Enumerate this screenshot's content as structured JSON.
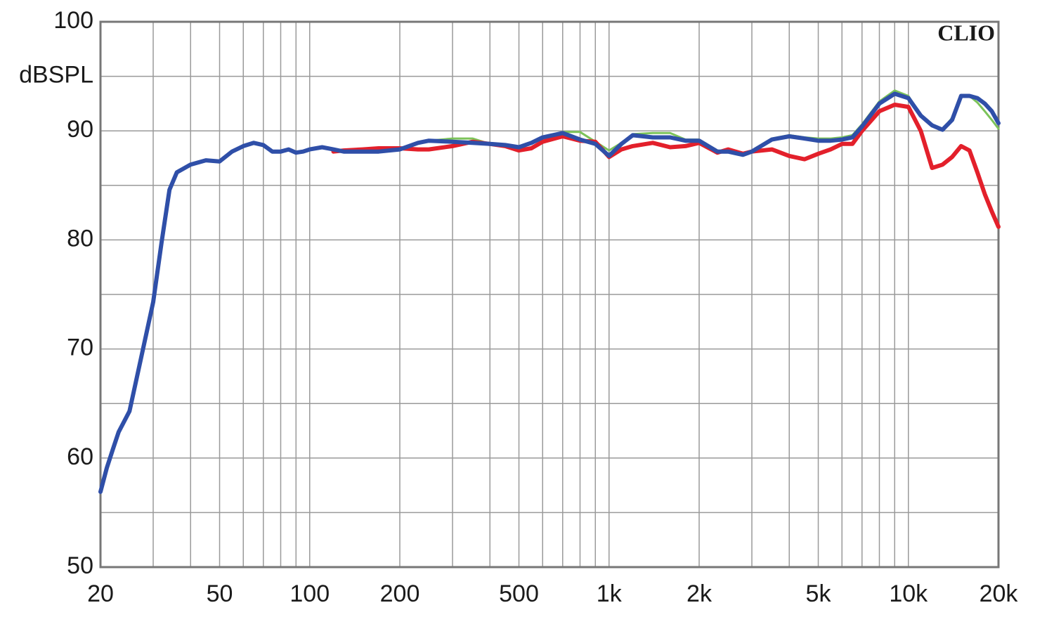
{
  "chart_data": {
    "type": "line",
    "y_label": "dBSPL",
    "annotation": "CLIO",
    "x_log": true,
    "grid": true,
    "x": [
      20,
      21,
      22,
      23,
      25,
      27,
      30,
      32,
      34,
      36,
      40,
      45,
      50,
      55,
      60,
      65,
      70,
      75,
      80,
      85,
      90,
      95,
      100,
      110,
      120,
      130,
      150,
      170,
      200,
      230,
      250,
      300,
      350,
      400,
      450,
      500,
      550,
      600,
      700,
      800,
      900,
      1000,
      1100,
      1200,
      1400,
      1600,
      1800,
      2000,
      2300,
      2500,
      2800,
      3000,
      3500,
      4000,
      4500,
      5000,
      5500,
      6000,
      6500,
      7000,
      8000,
      9000,
      10000,
      11000,
      12000,
      13000,
      14000,
      15000,
      16000,
      17000,
      18000,
      19000,
      20000
    ],
    "series": [
      {
        "color": "#7cc35a",
        "width": 3,
        "values": [
          56.9,
          59.1,
          60.8,
          62.4,
          64.3,
          68.5,
          74.3,
          79.8,
          84.6,
          86.2,
          86.9,
          87.3,
          87.2,
          88.1,
          88.6,
          88.9,
          88.7,
          88.1,
          88.1,
          88.3,
          88.0,
          88.1,
          88.3,
          88.5,
          88.3,
          88.1,
          88.1,
          88.1,
          88.3,
          88.9,
          89.1,
          89.3,
          89.3,
          88.8,
          88.7,
          88.5,
          88.9,
          89.4,
          89.9,
          89.9,
          89.0,
          88.2,
          88.9,
          89.7,
          89.8,
          89.8,
          89.2,
          89.2,
          88.2,
          88.1,
          87.8,
          88.2,
          89.3,
          89.6,
          89.4,
          89.3,
          89.3,
          89.4,
          89.6,
          90.6,
          92.7,
          93.7,
          93.2,
          91.4,
          90.5,
          90.1,
          91.2,
          93.2,
          93.2,
          92.6,
          91.8,
          91.0,
          90.2
        ]
      },
      {
        "color": "#e3202b",
        "width": 6,
        "values": [
          null,
          null,
          null,
          null,
          null,
          null,
          null,
          null,
          null,
          null,
          null,
          null,
          null,
          null,
          null,
          null,
          null,
          null,
          null,
          null,
          null,
          null,
          null,
          null,
          88.1,
          88.2,
          88.3,
          88.4,
          88.4,
          88.3,
          88.3,
          88.6,
          89.0,
          88.8,
          88.6,
          88.2,
          88.4,
          89.0,
          89.5,
          89.1,
          89.0,
          87.6,
          88.3,
          88.6,
          88.9,
          88.5,
          88.6,
          88.9,
          88.0,
          88.3,
          87.9,
          88.1,
          88.3,
          87.7,
          87.4,
          87.9,
          88.3,
          88.8,
          88.8,
          90.0,
          91.8,
          92.4,
          92.2,
          90.0,
          86.6,
          86.9,
          87.6,
          88.6,
          88.2,
          86.2,
          84.2,
          82.6,
          81.2
        ]
      },
      {
        "color": "#2f4fa8",
        "width": 6,
        "values": [
          56.9,
          59.1,
          60.8,
          62.4,
          64.3,
          68.5,
          74.3,
          79.8,
          84.6,
          86.2,
          86.9,
          87.3,
          87.2,
          88.1,
          88.6,
          88.9,
          88.7,
          88.1,
          88.1,
          88.3,
          88.0,
          88.1,
          88.3,
          88.5,
          88.3,
          88.1,
          88.1,
          88.1,
          88.3,
          88.9,
          89.1,
          89.0,
          88.9,
          88.8,
          88.7,
          88.5,
          88.9,
          89.4,
          89.8,
          89.2,
          88.8,
          87.7,
          88.8,
          89.6,
          89.4,
          89.4,
          89.1,
          89.1,
          88.1,
          88.1,
          87.8,
          88.1,
          89.2,
          89.5,
          89.3,
          89.1,
          89.1,
          89.2,
          89.4,
          90.4,
          92.5,
          93.4,
          93.0,
          91.4,
          90.5,
          90.1,
          91.0,
          93.2,
          93.2,
          93.0,
          92.5,
          91.8,
          90.7
        ]
      }
    ],
    "xlim": [
      20,
      20000
    ],
    "xticks": [
      20,
      50,
      100,
      200,
      500,
      {
        "value": 1000,
        "label": "1k"
      },
      {
        "value": 2000,
        "label": "2k"
      },
      {
        "value": 5000,
        "label": "5k"
      },
      {
        "value": 10000,
        "label": "10k"
      },
      {
        "value": 20000,
        "label": "20k"
      }
    ],
    "x_minor_grid": [
      30,
      40,
      60,
      70,
      80,
      90,
      300,
      400,
      600,
      700,
      800,
      900,
      3000,
      4000,
      6000,
      7000,
      8000,
      9000
    ],
    "ylim": [
      50,
      100
    ],
    "yticks": [
      50,
      60,
      70,
      80,
      90,
      100
    ],
    "y_minor_grid": [
      55,
      65,
      75,
      85,
      95
    ]
  }
}
